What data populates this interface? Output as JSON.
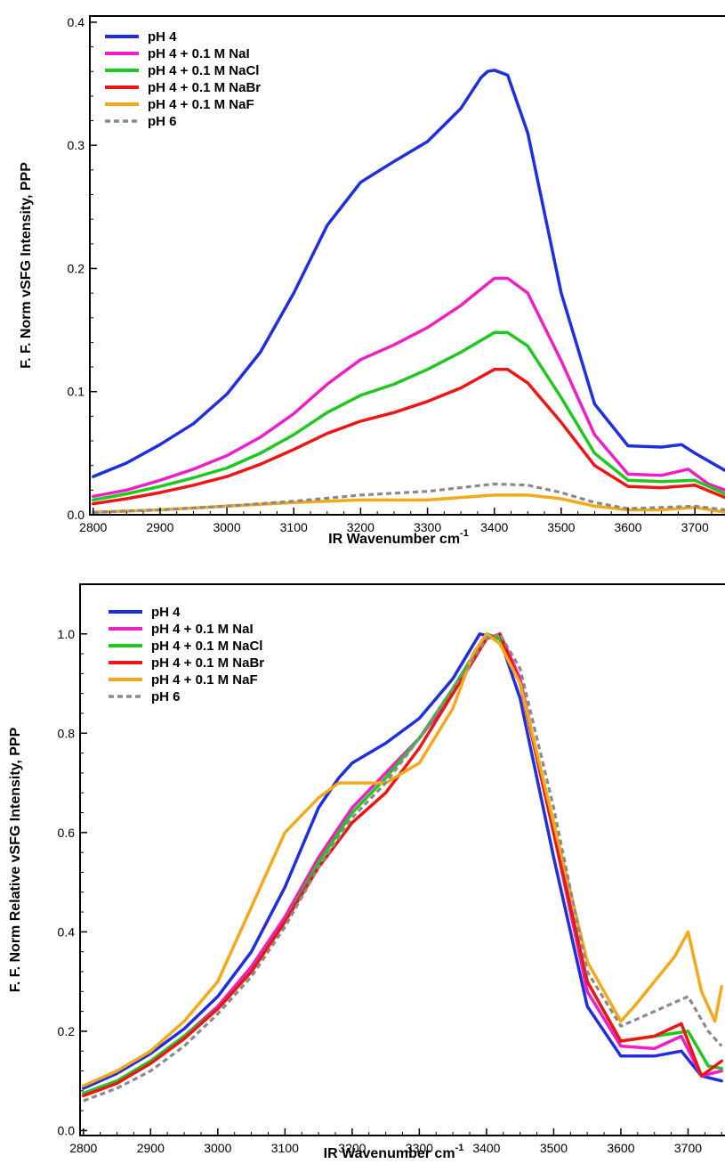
{
  "colors": {
    "blue": "#1f2fe0",
    "magenta": "#f01ec8",
    "green": "#1ec81e",
    "red": "#ee1515",
    "orange": "#f5a81a",
    "gray": "#8a8a8a"
  },
  "chart_data": [
    {
      "type": "line",
      "xlabel": "IR Wavenumber cm",
      "xlabel_sup": "-1",
      "ylabel": "F. F. Norm vSFG Intensity, PPP",
      "xlim": [
        2795,
        3745
      ],
      "ylim": [
        0,
        0.405
      ],
      "xticks": [
        2800,
        2900,
        3000,
        3100,
        3200,
        3300,
        3400,
        3500,
        3600,
        3700
      ],
      "yticks": [
        0.0,
        0.1,
        0.2,
        0.3,
        0.4
      ],
      "ytick_labels": [
        "0.0",
        "0.1",
        "0.2",
        "0.3",
        "0.4"
      ],
      "legend_position": "top-left",
      "series": [
        {
          "name": "pH 4",
          "color": "#1f2fe0",
          "dash": false,
          "x": [
            2800,
            2850,
            2900,
            2950,
            3000,
            3050,
            3100,
            3150,
            3200,
            3250,
            3300,
            3350,
            3380,
            3390,
            3400,
            3420,
            3450,
            3500,
            3550,
            3600,
            3650,
            3680,
            3700,
            3745
          ],
          "y": [
            0.031,
            0.042,
            0.057,
            0.074,
            0.098,
            0.132,
            0.18,
            0.235,
            0.27,
            0.287,
            0.303,
            0.33,
            0.355,
            0.36,
            0.361,
            0.357,
            0.31,
            0.18,
            0.09,
            0.056,
            0.055,
            0.057,
            0.05,
            0.036
          ]
        },
        {
          "name": "pH 4 + 0.1 M NaI",
          "color": "#f01ec8",
          "dash": false,
          "x": [
            2800,
            2850,
            2900,
            2950,
            3000,
            3050,
            3100,
            3150,
            3200,
            3250,
            3300,
            3350,
            3400,
            3420,
            3450,
            3500,
            3550,
            3600,
            3650,
            3690,
            3720,
            3745
          ],
          "y": [
            0.015,
            0.02,
            0.028,
            0.037,
            0.048,
            0.063,
            0.082,
            0.106,
            0.126,
            0.138,
            0.152,
            0.17,
            0.192,
            0.192,
            0.18,
            0.125,
            0.065,
            0.033,
            0.032,
            0.037,
            0.025,
            0.02
          ]
        },
        {
          "name": "pH 4 + 0.1 M NaCl",
          "color": "#1ec81e",
          "dash": false,
          "x": [
            2800,
            2850,
            2900,
            2950,
            3000,
            3050,
            3100,
            3150,
            3200,
            3250,
            3300,
            3350,
            3400,
            3420,
            3450,
            3500,
            3550,
            3600,
            3650,
            3700,
            3745
          ],
          "y": [
            0.012,
            0.017,
            0.023,
            0.03,
            0.038,
            0.05,
            0.065,
            0.083,
            0.097,
            0.106,
            0.118,
            0.132,
            0.148,
            0.148,
            0.137,
            0.095,
            0.05,
            0.028,
            0.027,
            0.028,
            0.017
          ]
        },
        {
          "name": "pH 4 + 0.1 M NaBr",
          "color": "#ee1515",
          "dash": false,
          "x": [
            2800,
            2850,
            2900,
            2950,
            3000,
            3050,
            3100,
            3150,
            3200,
            3250,
            3300,
            3350,
            3400,
            3420,
            3450,
            3500,
            3550,
            3600,
            3650,
            3700,
            3745
          ],
          "y": [
            0.009,
            0.013,
            0.018,
            0.024,
            0.031,
            0.041,
            0.053,
            0.066,
            0.076,
            0.083,
            0.092,
            0.103,
            0.118,
            0.118,
            0.107,
            0.075,
            0.04,
            0.023,
            0.022,
            0.024,
            0.014
          ]
        },
        {
          "name": "pH 4 + 0.1 M NaF",
          "color": "#f5a81a",
          "dash": false,
          "x": [
            2800,
            2900,
            3000,
            3100,
            3200,
            3300,
            3400,
            3450,
            3500,
            3550,
            3600,
            3650,
            3700,
            3745
          ],
          "y": [
            0.002,
            0.004,
            0.007,
            0.01,
            0.012,
            0.012,
            0.016,
            0.016,
            0.013,
            0.007,
            0.004,
            0.004,
            0.006,
            0.002
          ]
        },
        {
          "name": "pH 6",
          "color": "#8a8a8a",
          "dash": true,
          "x": [
            2800,
            2900,
            3000,
            3100,
            3200,
            3300,
            3400,
            3450,
            3500,
            3550,
            3600,
            3650,
            3700,
            3745
          ],
          "y": [
            0.002,
            0.004,
            0.007,
            0.011,
            0.016,
            0.019,
            0.025,
            0.024,
            0.018,
            0.01,
            0.005,
            0.006,
            0.007,
            0.004
          ]
        }
      ]
    },
    {
      "type": "line",
      "xlabel": "IR Wavenumber cm",
      "xlabel_sup": "-1",
      "ylabel": "F. F. Norm Relative vSFG Intensity, PPP",
      "xlim": [
        2795,
        3755
      ],
      "ylim": [
        -0.01,
        1.1
      ],
      "xticks": [
        2800,
        2900,
        3000,
        3100,
        3200,
        3300,
        3400,
        3500,
        3600,
        3700
      ],
      "yticks": [
        0.0,
        0.2,
        0.4,
        0.6,
        0.8,
        1.0
      ],
      "ytick_labels": [
        "0.0",
        "0.2",
        "0.4",
        "0.6",
        "0.8",
        "1.0"
      ],
      "legend_position": "top-left",
      "series": [
        {
          "name": "pH 4",
          "color": "#1f2fe0",
          "dash": false,
          "x": [
            2800,
            2850,
            2900,
            2950,
            3000,
            3050,
            3100,
            3150,
            3180,
            3200,
            3250,
            3300,
            3350,
            3390,
            3420,
            3450,
            3500,
            3550,
            3600,
            3650,
            3690,
            3720,
            3750
          ],
          "y": [
            0.085,
            0.115,
            0.155,
            0.205,
            0.27,
            0.36,
            0.49,
            0.65,
            0.71,
            0.74,
            0.78,
            0.83,
            0.91,
            1.0,
            0.99,
            0.87,
            0.55,
            0.25,
            0.15,
            0.15,
            0.16,
            0.11,
            0.1
          ]
        },
        {
          "name": "pH 4 + 0.1 M NaI",
          "color": "#f01ec8",
          "dash": false,
          "x": [
            2800,
            2850,
            2900,
            2950,
            3000,
            3050,
            3100,
            3150,
            3200,
            3250,
            3300,
            3350,
            3400,
            3420,
            3450,
            3500,
            3550,
            3600,
            3650,
            3690,
            3720,
            3750
          ],
          "y": [
            0.075,
            0.1,
            0.14,
            0.19,
            0.25,
            0.33,
            0.43,
            0.55,
            0.65,
            0.72,
            0.79,
            0.88,
            0.99,
            1.0,
            0.91,
            0.6,
            0.28,
            0.17,
            0.165,
            0.19,
            0.11,
            0.12
          ]
        },
        {
          "name": "pH 4 + 0.1 M NaCl",
          "color": "#1ec81e",
          "dash": false,
          "x": [
            2800,
            2850,
            2900,
            2950,
            3000,
            3050,
            3100,
            3150,
            3200,
            3250,
            3300,
            3350,
            3400,
            3420,
            3450,
            3500,
            3550,
            3600,
            3650,
            3700,
            3730,
            3750
          ],
          "y": [
            0.075,
            0.1,
            0.14,
            0.19,
            0.245,
            0.32,
            0.42,
            0.54,
            0.64,
            0.71,
            0.79,
            0.89,
            1.0,
            0.99,
            0.9,
            0.6,
            0.3,
            0.18,
            0.19,
            0.2,
            0.13,
            0.125
          ]
        },
        {
          "name": "pH 4 + 0.1 M NaBr",
          "color": "#ee1515",
          "dash": false,
          "x": [
            2800,
            2850,
            2900,
            2950,
            3000,
            3050,
            3100,
            3150,
            3200,
            3250,
            3300,
            3350,
            3400,
            3420,
            3450,
            3500,
            3550,
            3600,
            3650,
            3690,
            3720,
            3750
          ],
          "y": [
            0.07,
            0.095,
            0.135,
            0.185,
            0.245,
            0.32,
            0.42,
            0.53,
            0.62,
            0.68,
            0.77,
            0.88,
            0.99,
            1.0,
            0.9,
            0.6,
            0.3,
            0.18,
            0.19,
            0.215,
            0.11,
            0.14
          ]
        },
        {
          "name": "pH 4 + 0.1 M NaF",
          "color": "#f5a81a",
          "dash": false,
          "x": [
            2800,
            2850,
            2900,
            2950,
            3000,
            3050,
            3100,
            3150,
            3180,
            3200,
            3250,
            3300,
            3350,
            3380,
            3400,
            3420,
            3450,
            3500,
            3550,
            3600,
            3620,
            3650,
            3680,
            3700,
            3720,
            3740,
            3750
          ],
          "y": [
            0.09,
            0.12,
            0.16,
            0.22,
            0.3,
            0.45,
            0.6,
            0.67,
            0.7,
            0.7,
            0.7,
            0.74,
            0.85,
            0.96,
            1.0,
            0.98,
            0.9,
            0.62,
            0.34,
            0.22,
            0.25,
            0.3,
            0.35,
            0.4,
            0.28,
            0.22,
            0.29
          ]
        },
        {
          "name": "pH 6",
          "color": "#8a8a8a",
          "dash": true,
          "x": [
            2800,
            2850,
            2900,
            2950,
            3000,
            3050,
            3100,
            3150,
            3200,
            3250,
            3300,
            3350,
            3400,
            3420,
            3450,
            3500,
            3550,
            3600,
            3650,
            3700,
            3730,
            3750
          ],
          "y": [
            0.06,
            0.085,
            0.12,
            0.17,
            0.235,
            0.31,
            0.41,
            0.53,
            0.63,
            0.7,
            0.79,
            0.89,
            0.99,
            1.0,
            0.93,
            0.65,
            0.32,
            0.21,
            0.24,
            0.27,
            0.2,
            0.17
          ]
        }
      ]
    }
  ]
}
